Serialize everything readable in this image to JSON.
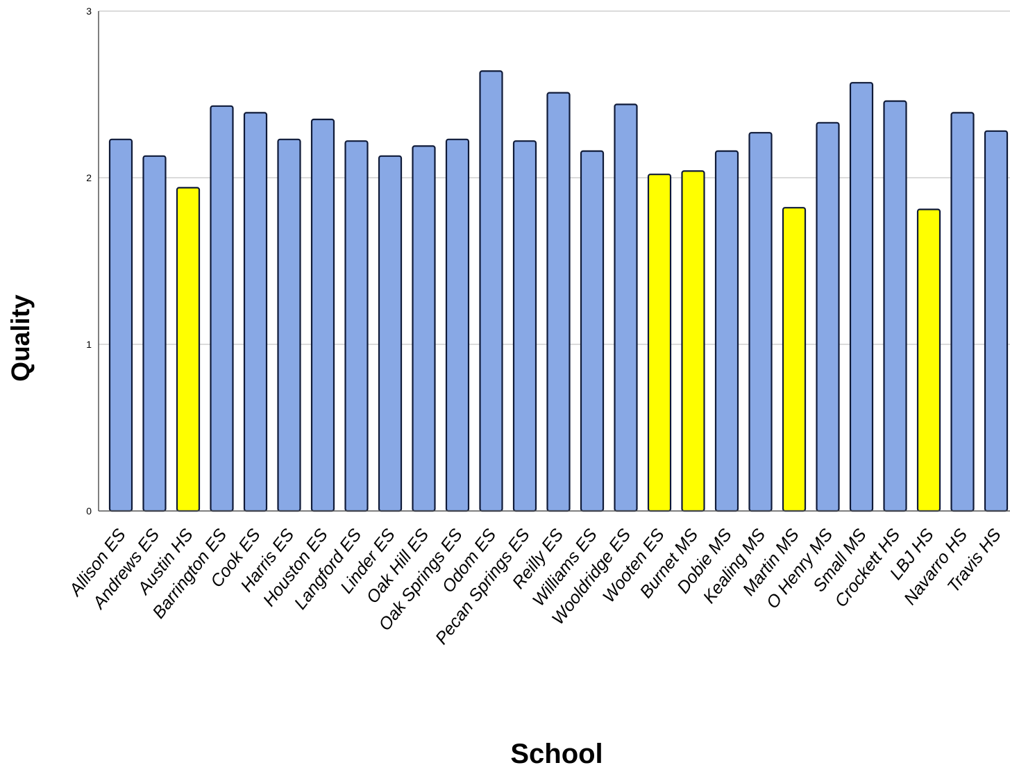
{
  "chart_data": {
    "type": "bar",
    "title": "",
    "xlabel": "School",
    "ylabel": "Quality",
    "ylim": [
      0,
      3
    ],
    "yticks": [
      0,
      1,
      2,
      3
    ],
    "grid": true,
    "legend": "none",
    "colors": {
      "default": "#88a8e5",
      "highlight": "#ffff00",
      "outline": "#0f1a38"
    },
    "categories": [
      "Allison ES",
      "Andrews ES",
      "Austin HS",
      "Barrington ES",
      "Cook ES",
      "Harris ES",
      "Houston ES",
      "Langford ES",
      "Linder ES",
      "Oak Hill ES",
      "Oak Springs ES",
      "Odom ES",
      "Pecan Springs ES",
      "Reilly ES",
      "Williams ES",
      "Wooldridge ES",
      "Wooten ES",
      "Burnet MS",
      "Dobie MS",
      "Kealing MS",
      "Martin MS",
      "O Henry MS",
      "Small MS",
      "Crockett HS",
      "LBJ HS",
      "Navarro HS",
      "Travis HS"
    ],
    "values": [
      2.23,
      2.13,
      1.94,
      2.43,
      2.39,
      2.23,
      2.35,
      2.22,
      2.13,
      2.19,
      2.23,
      2.64,
      2.22,
      2.51,
      2.16,
      2.44,
      2.02,
      2.04,
      2.16,
      2.27,
      1.82,
      2.33,
      2.57,
      2.46,
      1.81,
      2.39,
      2.28
    ],
    "highlighted": [
      false,
      false,
      true,
      false,
      false,
      false,
      false,
      false,
      false,
      false,
      false,
      false,
      false,
      false,
      false,
      false,
      true,
      true,
      false,
      false,
      true,
      false,
      false,
      false,
      true,
      false,
      false
    ]
  }
}
